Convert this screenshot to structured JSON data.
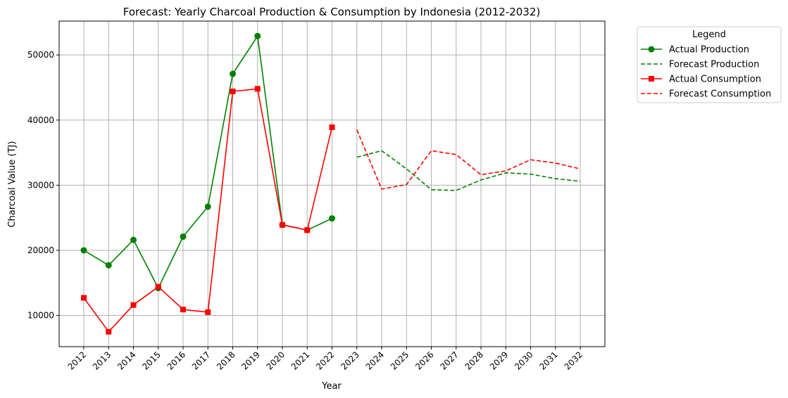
{
  "chart_data": {
    "type": "line",
    "title": "Forecast: Yearly Charcoal Production & Consumption by Indonesia (2012-2032)",
    "xlabel": "Year",
    "ylabel": "Charcoal Value (TJ)",
    "ylim": [
      5200,
      55200
    ],
    "y_ticks": [
      10000,
      20000,
      30000,
      40000,
      50000
    ],
    "x_ticks": [
      "2012",
      "2013",
      "2014",
      "2015",
      "2016",
      "2017",
      "2018",
      "2019",
      "2020",
      "2021",
      "2022",
      "2023",
      "2024",
      "2025",
      "2026",
      "2027",
      "2028",
      "2029",
      "2030",
      "2031",
      "2032"
    ],
    "grid": true,
    "legend": {
      "title": "Legend",
      "placement": "outside-top-right"
    },
    "series": [
      {
        "name": "Actual Production",
        "color": "#008000",
        "style": "solid",
        "marker": "circle",
        "x": [
          2012,
          2013,
          2014,
          2015,
          2016,
          2017,
          2018,
          2019,
          2020,
          2021,
          2022
        ],
        "y": [
          20000,
          17700,
          21600,
          14200,
          22100,
          26700,
          47100,
          52900,
          23900,
          23100,
          24900
        ]
      },
      {
        "name": "Forecast Production",
        "color": "#008000",
        "style": "dashed",
        "marker": "none",
        "x": [
          2023,
          2024,
          2025,
          2026,
          2027,
          2028,
          2029,
          2030,
          2031,
          2032
        ],
        "y": [
          34300,
          35300,
          32500,
          29300,
          29200,
          30800,
          31900,
          31700,
          31000,
          30600
        ]
      },
      {
        "name": "Actual Consumption",
        "color": "#ff0000",
        "style": "solid",
        "marker": "square",
        "x": [
          2012,
          2013,
          2014,
          2015,
          2016,
          2017,
          2018,
          2019,
          2020,
          2021,
          2022
        ],
        "y": [
          12700,
          7500,
          11600,
          14400,
          10900,
          10500,
          44400,
          44800,
          23900,
          23100,
          38900
        ]
      },
      {
        "name": "Forecast Consumption",
        "color": "#ff0000",
        "style": "dashed",
        "marker": "none",
        "x": [
          2023,
          2024,
          2025,
          2026,
          2027,
          2028,
          2029,
          2030,
          2031,
          2032
        ],
        "y": [
          38500,
          29400,
          30100,
          35300,
          34700,
          31600,
          32200,
          33900,
          33400,
          32500
        ]
      }
    ]
  }
}
